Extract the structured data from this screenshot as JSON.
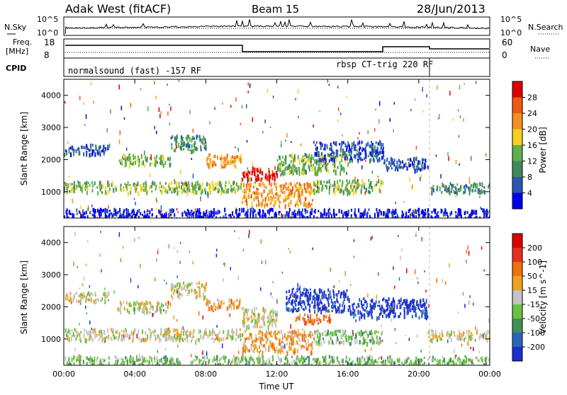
{
  "header": {
    "station": "Adak West (fitACF)",
    "beam": "Beam 15",
    "date": "28/Jun/2013"
  },
  "top_panels": {
    "nsky_label": "N.Sky",
    "nsky_ticks": [
      "10^5",
      "10^0"
    ],
    "nsearch_label": "N.Search",
    "nsearch_ticks": [
      "10^5",
      "10^0"
    ],
    "freq_label": "Freq.",
    "freq_unit": "[MHz]",
    "freq_ticks": [
      "18",
      "8"
    ],
    "nave_label": "Nave",
    "nave_ticks": [
      "60",
      "0"
    ],
    "cpid_label": "CPID",
    "cpid_segments": [
      "normalsound (fast) -157 RF",
      "rbsp CT-trig 220 RF"
    ]
  },
  "chart_data": [
    {
      "type": "heatmap",
      "name": "power-panel",
      "ylabel": "Slant Range [km]",
      "ylim": [
        180,
        4500
      ],
      "yticks": [
        1000,
        2000,
        3000,
        4000
      ],
      "xlabel": "",
      "xlim": [
        0,
        24
      ],
      "xticks": [
        0,
        4,
        8,
        12,
        16,
        20,
        24
      ],
      "colorbar": {
        "label": "Power [dB]",
        "ticks": [
          "4",
          "8",
          "12",
          "16",
          "20",
          "24",
          "28"
        ],
        "colors": [
          "#0000ee",
          "#2a55b4",
          "#3f8a5c",
          "#5fb04a",
          "#f5d020",
          "#f59020",
          "#ee5a10",
          "#dd0000"
        ]
      },
      "regions": [
        {
          "t0": 0,
          "t1": 10,
          "r0": 1000,
          "r1": 1350,
          "level": 3
        },
        {
          "t0": 0,
          "t1": 2.5,
          "r0": 2200,
          "r1": 2500,
          "level": 1
        },
        {
          "t0": 3,
          "t1": 6,
          "r0": 1850,
          "r1": 2200,
          "level": 3
        },
        {
          "t0": 6,
          "t1": 8,
          "r0": 2300,
          "r1": 2800,
          "level": 2
        },
        {
          "t0": 8,
          "t1": 10,
          "r0": 1800,
          "r1": 2200,
          "level": 5
        },
        {
          "t0": 10,
          "t1": 12,
          "r0": 1400,
          "r1": 1800,
          "level": 7
        },
        {
          "t0": 10,
          "t1": 14,
          "r0": 600,
          "r1": 1300,
          "level": 5
        },
        {
          "t0": 12,
          "t1": 16,
          "r0": 1600,
          "r1": 2200,
          "level": 3
        },
        {
          "t0": 14,
          "t1": 18,
          "r0": 1000,
          "r1": 1400,
          "level": 3
        },
        {
          "t0": 14,
          "t1": 18,
          "r0": 2000,
          "r1": 2600,
          "level": 1
        },
        {
          "t0": 18,
          "t1": 20.5,
          "r0": 1700,
          "r1": 2100,
          "level": 1
        },
        {
          "t0": 20.5,
          "t1": 24,
          "r0": 1000,
          "r1": 1300,
          "level": 2
        },
        {
          "t0": 0,
          "t1": 24,
          "r0": 200,
          "r1": 500,
          "level": 0
        }
      ]
    },
    {
      "type": "heatmap",
      "name": "velocity-panel",
      "ylabel": "Slant Range [km]",
      "ylim": [
        180,
        4500
      ],
      "yticks": [
        1000,
        2000,
        3000,
        4000
      ],
      "xlabel": "Time UT",
      "xlim": [
        0,
        24
      ],
      "xticks": [
        0,
        4,
        8,
        12,
        16,
        20,
        24
      ],
      "xticklabels": [
        "00:00",
        "04:00",
        "08:00",
        "12:00",
        "16:00",
        "20:00",
        "00:00"
      ],
      "colorbar": {
        "label": "Velocity [m s^-1]",
        "ticks": [
          "200",
          "100",
          "50",
          "15",
          "-15",
          "-50",
          "-100",
          "-200"
        ],
        "colors": [
          "#1a2fd0",
          "#2a66b8",
          "#3f8f5a",
          "#6cc040",
          "#c4c4c4",
          "#f0a020",
          "#f07010",
          "#e83020",
          "#dd0000"
        ]
      },
      "regions": [
        {
          "t0": 0,
          "t1": 10,
          "r0": 1000,
          "r1": 1350,
          "level": 4
        },
        {
          "t0": 0,
          "t1": 2.5,
          "r0": 2200,
          "r1": 2500,
          "level": 4
        },
        {
          "t0": 3,
          "t1": 6,
          "r0": 1850,
          "r1": 2200,
          "level": 4
        },
        {
          "t0": 6,
          "t1": 8,
          "r0": 2300,
          "r1": 2800,
          "level": 4
        },
        {
          "t0": 8,
          "t1": 10,
          "r0": 2000,
          "r1": 2300,
          "level": 5
        },
        {
          "t0": 10,
          "t1": 12,
          "r0": 1400,
          "r1": 2000,
          "level": 4
        },
        {
          "t0": 10,
          "t1": 14,
          "r0": 600,
          "r1": 1300,
          "level": 5
        },
        {
          "t0": 13,
          "t1": 15,
          "r0": 1500,
          "r1": 1800,
          "level": 6
        },
        {
          "t0": 14,
          "t1": 18,
          "r0": 900,
          "r1": 1300,
          "level": 3
        },
        {
          "t0": 12.5,
          "t1": 16,
          "r0": 1900,
          "r1": 2600,
          "level": 0
        },
        {
          "t0": 16,
          "t1": 20.5,
          "r0": 1700,
          "r1": 2300,
          "level": 0
        },
        {
          "t0": 20.5,
          "t1": 24,
          "r0": 1000,
          "r1": 1300,
          "level": 4
        },
        {
          "t0": 0,
          "t1": 24,
          "r0": 200,
          "r1": 500,
          "level": 3
        }
      ]
    }
  ]
}
